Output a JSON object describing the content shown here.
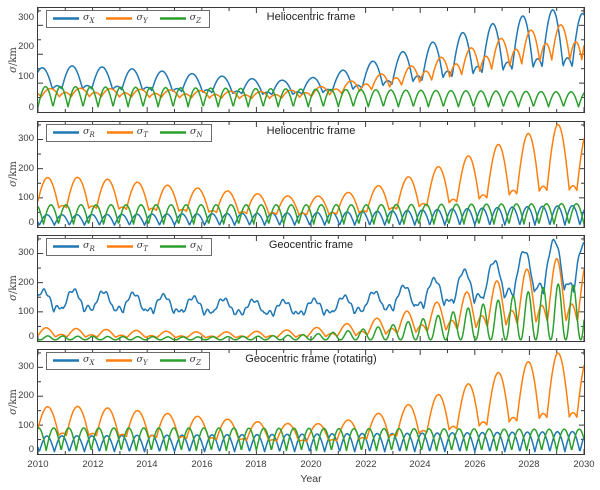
{
  "figure": {
    "xlabel": "Year",
    "xticks": [
      "2010",
      "2012",
      "2014",
      "2016",
      "2018",
      "2020",
      "2022",
      "2024",
      "2026",
      "2028",
      "2030"
    ],
    "x_range": [
      2010,
      2030
    ],
    "envelope_years": [
      2010,
      2011,
      2012,
      2013,
      2014,
      2015,
      2016,
      2017,
      2018,
      2019,
      2020,
      2021,
      2022,
      2023,
      2024,
      2025,
      2026,
      2027,
      2028,
      2029,
      2030
    ],
    "colors": {
      "series_blue": "#1f77b4",
      "series_orange": "#ff7f0e",
      "series_green": "#2ca02c",
      "axis": "#3a3a3a",
      "background": "#ffffff"
    }
  },
  "chart_data": [
    {
      "type": "line",
      "title": "Heliocentric frame",
      "ylabel": "σ/km",
      "ylabel_main": "σ",
      "ylabel_unit": "/km",
      "ylim": [
        0,
        360
      ],
      "yticks": [
        "0",
        "100",
        "200",
        "300"
      ],
      "legend_position": "top-left",
      "grid": false,
      "series": [
        {
          "label": "σX",
          "label_main": "σ",
          "label_sub": "X",
          "color": "#1f77b4",
          "period_years": 1.1,
          "phase_years": -0.4,
          "peak_exponent": 1.15,
          "secondary_peak_ratio": 0.5,
          "ripple_km": 0,
          "base_km": 25,
          "envelope_peaks_km": [
            152,
            160,
            158,
            152,
            146,
            138,
            130,
            122,
            114,
            110,
            118,
            140,
            168,
            198,
            228,
            258,
            288,
            315,
            338,
            356,
            340
          ]
        },
        {
          "label": "σY",
          "label_main": "σ",
          "label_sub": "Y",
          "color": "#ff7f0e",
          "period_years": 1.1,
          "phase_years": -0.1,
          "peak_exponent": 1.0,
          "secondary_peak_ratio": 0.8,
          "ripple_km": 0,
          "base_km": 12,
          "envelope_peaks_km": [
            80,
            82,
            82,
            80,
            78,
            76,
            74,
            72,
            70,
            73,
            82,
            98,
            118,
            142,
            168,
            196,
            226,
            256,
            282,
            302,
            300
          ]
        },
        {
          "label": "σZ",
          "label_main": "σ",
          "label_sub": "Z",
          "color": "#2ca02c",
          "period_years": 0.55,
          "phase_years": 0.0,
          "peak_exponent": 1.0,
          "secondary_peak_ratio": 0,
          "ripple_km": 0,
          "base_km": 18,
          "envelope_peaks_km": [
            88,
            88,
            87,
            86,
            85,
            84,
            83,
            82,
            81,
            80,
            79,
            78,
            77,
            76,
            75,
            74,
            73,
            72,
            71,
            70,
            70
          ]
        }
      ]
    },
    {
      "type": "line",
      "title": "Heliocentric frame",
      "ylabel": "σ/km",
      "ylabel_main": "σ",
      "ylabel_unit": "/km",
      "ylim": [
        0,
        360
      ],
      "yticks": [
        "0",
        "100",
        "200",
        "300"
      ],
      "legend_position": "top-left",
      "grid": false,
      "series": [
        {
          "label": "σR",
          "label_main": "σ",
          "label_sub": "R",
          "color": "#1f77b4",
          "period_years": 0.55,
          "phase_years": 0.05,
          "peak_exponent": 1.0,
          "secondary_peak_ratio": 0,
          "ripple_km": 0,
          "base_km": 6,
          "envelope_peaks_km": [
            42,
            42,
            43,
            43,
            44,
            45,
            45,
            46,
            47,
            48,
            49,
            51,
            53,
            55,
            58,
            61,
            64,
            67,
            70,
            72,
            74
          ]
        },
        {
          "label": "σT",
          "label_main": "σ",
          "label_sub": "T",
          "color": "#ff7f0e",
          "period_years": 1.1,
          "phase_years": -0.2,
          "peak_exponent": 1.1,
          "secondary_peak_ratio": 0.4,
          "ripple_km": 0,
          "base_km": 8,
          "envelope_peaks_km": [
            168,
            172,
            168,
            160,
            150,
            141,
            132,
            123,
            114,
            107,
            104,
            112,
            130,
            155,
            185,
            218,
            252,
            288,
            322,
            352,
            335
          ]
        },
        {
          "label": "σN",
          "label_main": "σ",
          "label_sub": "N",
          "color": "#2ca02c",
          "period_years": 0.55,
          "phase_years": 0.2,
          "peak_exponent": 1.0,
          "secondary_peak_ratio": 0,
          "ripple_km": 0,
          "base_km": 10,
          "envelope_peaks_km": [
            76,
            76,
            76,
            76,
            76,
            76,
            76,
            76,
            76,
            76,
            76,
            76,
            76,
            77,
            77,
            78,
            78,
            79,
            79,
            80,
            80
          ]
        }
      ]
    },
    {
      "type": "line",
      "title": "Geocentric frame",
      "ylabel": "σ/km",
      "ylabel_main": "σ",
      "ylabel_unit": "/km",
      "ylim": [
        0,
        360
      ],
      "yticks": [
        "0",
        "100",
        "200",
        "300"
      ],
      "legend_position": "top-left",
      "grid": false,
      "series": [
        {
          "label": "σR",
          "label_main": "σ",
          "label_sub": "R",
          "color": "#1f77b4",
          "period_years": 1.1,
          "phase_years": -0.35,
          "peak_exponent": 1.25,
          "secondary_peak_ratio": 0.5,
          "ripple_km": 6,
          "base_km": 60,
          "envelope_peaks_km": [
            172,
            176,
            172,
            166,
            160,
            154,
            148,
            143,
            139,
            137,
            140,
            150,
            163,
            180,
            200,
            224,
            252,
            282,
            315,
            348,
            332
          ]
        },
        {
          "label": "σT",
          "label_main": "σ",
          "label_sub": "T",
          "color": "#ff7f0e",
          "period_years": 1.1,
          "phase_years": -0.25,
          "peak_exponent": 2.5,
          "secondary_peak_ratio": 0.45,
          "ripple_km": 0,
          "base_km": 5,
          "envelope_peaks_km": [
            46,
            44,
            41,
            38,
            35,
            33,
            31,
            31,
            33,
            37,
            44,
            55,
            70,
            90,
            115,
            145,
            178,
            213,
            250,
            283,
            270
          ]
        },
        {
          "label": "σN",
          "label_main": "σ",
          "label_sub": "N",
          "color": "#2ca02c",
          "period_years": 0.55,
          "phase_years": 0.08,
          "peak_exponent": 2.2,
          "secondary_peak_ratio": 0,
          "ripple_km": 0,
          "base_km": 4,
          "envelope_peaks_km": [
            18,
            17,
            16,
            15,
            15,
            14,
            14,
            15,
            16,
            19,
            23,
            31,
            42,
            56,
            74,
            95,
            119,
            144,
            170,
            196,
            188
          ]
        }
      ]
    },
    {
      "type": "line",
      "title": "Geocentric frame (rotating)",
      "ylabel": "σ/km",
      "ylabel_main": "σ",
      "ylabel_unit": "/km",
      "ylim": [
        0,
        360
      ],
      "yticks": [
        "0",
        "100",
        "200",
        "300"
      ],
      "legend_position": "top-left",
      "grid": false,
      "series": [
        {
          "label": "σX",
          "label_main": "σ",
          "label_sub": "X",
          "color": "#1f77b4",
          "period_years": 0.55,
          "phase_years": 0.05,
          "peak_exponent": 1.0,
          "secondary_peak_ratio": 0,
          "ripple_km": 0,
          "base_km": 8,
          "envelope_peaks_km": [
            62,
            63,
            63,
            64,
            65,
            65,
            66,
            67,
            67,
            68,
            69,
            70,
            71,
            71,
            72,
            73,
            74,
            75,
            76,
            77,
            78
          ]
        },
        {
          "label": "σY",
          "label_main": "σ",
          "label_sub": "Y",
          "color": "#ff7f0e",
          "period_years": 1.1,
          "phase_years": -0.2,
          "peak_exponent": 1.1,
          "secondary_peak_ratio": 0.4,
          "ripple_km": 0,
          "base_km": 10,
          "envelope_peaks_km": [
            162,
            166,
            163,
            156,
            147,
            138,
            129,
            120,
            112,
            106,
            103,
            111,
            129,
            154,
            184,
            217,
            251,
            287,
            321,
            350,
            338
          ]
        },
        {
          "label": "σZ",
          "label_main": "σ",
          "label_sub": "Z",
          "color": "#2ca02c",
          "period_years": 0.55,
          "phase_years": 0.3,
          "peak_exponent": 1.0,
          "secondary_peak_ratio": 0,
          "ripple_km": 0,
          "base_km": 12,
          "envelope_peaks_km": [
            90,
            90,
            90,
            90,
            90,
            90,
            90,
            90,
            89,
            89,
            89,
            88,
            88,
            88,
            87,
            87,
            87,
            86,
            86,
            86,
            86
          ]
        }
      ]
    }
  ]
}
